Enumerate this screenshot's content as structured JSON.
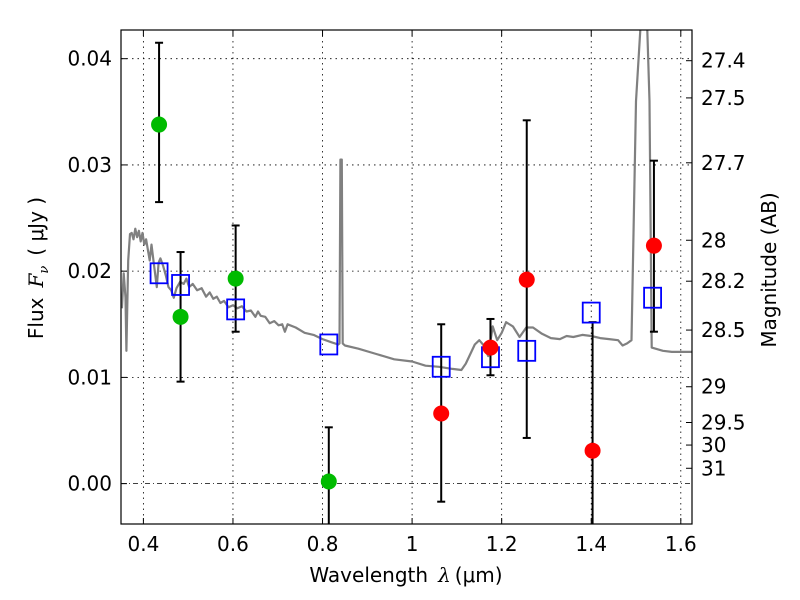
{
  "chart_data": {
    "type": "scatter",
    "title": "",
    "xlabel": "Wavelength  λ (μm)",
    "xlabel_parts": {
      "text": "Wavelength",
      "symbol": "λ",
      "unit": "(μm)"
    },
    "ylabel": "Flux  Fν  ( μJy )",
    "ylabel_parts": {
      "text": "Flux",
      "symbol": "F",
      "subscript": "ν",
      "unit": "( μJy )"
    },
    "y2label": "Magnitude (AB)",
    "xlim": [
      0.35,
      1.625
    ],
    "ylim": [
      -0.0038,
      0.0427
    ],
    "grid": true,
    "legend": "none",
    "xticks": [
      {
        "value": 0.4,
        "label": "0.4"
      },
      {
        "value": 0.6,
        "label": "0.6"
      },
      {
        "value": 0.8,
        "label": "0.8"
      },
      {
        "value": 1.0,
        "label": "1"
      },
      {
        "value": 1.2,
        "label": "1.2"
      },
      {
        "value": 1.4,
        "label": "1.4"
      },
      {
        "value": 1.6,
        "label": "1.6"
      }
    ],
    "yticks": [
      {
        "value": 0.0,
        "label": "0.00"
      },
      {
        "value": 0.01,
        "label": "0.01"
      },
      {
        "value": 0.02,
        "label": "0.02"
      },
      {
        "value": 0.03,
        "label": "0.03"
      },
      {
        "value": 0.04,
        "label": "0.04"
      }
    ],
    "y2ticks": [
      {
        "value": 27.4,
        "label": "27.4"
      },
      {
        "value": 27.5,
        "label": "27.5"
      },
      {
        "value": 27.7,
        "label": "27.7"
      },
      {
        "value": 28.0,
        "label": "28"
      },
      {
        "value": 28.2,
        "label": "28.2"
      },
      {
        "value": 28.5,
        "label": "28.5"
      },
      {
        "value": 29.0,
        "label": "29"
      },
      {
        "value": 29.5,
        "label": "29.5"
      },
      {
        "value": 30.0,
        "label": "30"
      },
      {
        "value": 31.0,
        "label": "31"
      }
    ],
    "zero_line": {
      "y": 0.0,
      "style": "dash-dot"
    },
    "series": [
      {
        "name": "model-spectrum",
        "kind": "line",
        "color": "#808080",
        "points": [
          [
            0.352,
            0.0165
          ],
          [
            0.356,
            0.0198
          ],
          [
            0.36,
            0.0175
          ],
          [
            0.362,
            0.0125
          ],
          [
            0.366,
            0.021
          ],
          [
            0.37,
            0.0235
          ],
          [
            0.374,
            0.0236
          ],
          [
            0.378,
            0.023
          ],
          [
            0.382,
            0.024
          ],
          [
            0.386,
            0.0232
          ],
          [
            0.39,
            0.0238
          ],
          [
            0.394,
            0.0228
          ],
          [
            0.398,
            0.0236
          ],
          [
            0.402,
            0.0225
          ],
          [
            0.406,
            0.023
          ],
          [
            0.41,
            0.022
          ],
          [
            0.414,
            0.021
          ],
          [
            0.418,
            0.0225
          ],
          [
            0.424,
            0.0205
          ],
          [
            0.43,
            0.0185
          ],
          [
            0.434,
            0.0208
          ],
          [
            0.438,
            0.0212
          ],
          [
            0.444,
            0.0205
          ],
          [
            0.45,
            0.0196
          ],
          [
            0.456,
            0.0185
          ],
          [
            0.462,
            0.0182
          ],
          [
            0.468,
            0.0175
          ],
          [
            0.474,
            0.0184
          ],
          [
            0.482,
            0.019
          ],
          [
            0.49,
            0.0188
          ],
          [
            0.496,
            0.0193
          ],
          [
            0.502,
            0.0185
          ],
          [
            0.51,
            0.0188
          ],
          [
            0.52,
            0.0182
          ],
          [
            0.53,
            0.0184
          ],
          [
            0.54,
            0.0176
          ],
          [
            0.548,
            0.018
          ],
          [
            0.556,
            0.0174
          ],
          [
            0.564,
            0.0176
          ],
          [
            0.572,
            0.017
          ],
          [
            0.58,
            0.0172
          ],
          [
            0.59,
            0.0166
          ],
          [
            0.6,
            0.0168
          ],
          [
            0.61,
            0.0165
          ],
          [
            0.62,
            0.0167
          ],
          [
            0.63,
            0.0162
          ],
          [
            0.64,
            0.0163
          ],
          [
            0.65,
            0.0157
          ],
          [
            0.656,
            0.0162
          ],
          [
            0.662,
            0.0158
          ],
          [
            0.672,
            0.0157
          ],
          [
            0.682,
            0.0151
          ],
          [
            0.692,
            0.0153
          ],
          [
            0.702,
            0.0149
          ],
          [
            0.71,
            0.015
          ],
          [
            0.716,
            0.0143
          ],
          [
            0.722,
            0.015
          ],
          [
            0.74,
            0.0147
          ],
          [
            0.76,
            0.0142
          ],
          [
            0.78,
            0.014
          ],
          [
            0.8,
            0.0136
          ],
          [
            0.82,
            0.0133
          ],
          [
            0.835,
            0.0131
          ],
          [
            0.838,
            0.0132
          ],
          [
            0.84,
            0.0305
          ],
          [
            0.843,
            0.0305
          ],
          [
            0.845,
            0.0132
          ],
          [
            0.85,
            0.013
          ],
          [
            0.88,
            0.0127
          ],
          [
            0.92,
            0.0122
          ],
          [
            0.96,
            0.0117
          ],
          [
            1.0,
            0.0115
          ],
          [
            1.03,
            0.0111
          ],
          [
            1.06,
            0.011
          ],
          [
            1.09,
            0.0108
          ],
          [
            1.11,
            0.0107
          ],
          [
            1.12,
            0.0113
          ],
          [
            1.14,
            0.0131
          ],
          [
            1.15,
            0.0135
          ],
          [
            1.16,
            0.013
          ],
          [
            1.17,
            0.012
          ],
          [
            1.18,
            0.0148
          ],
          [
            1.19,
            0.0135
          ],
          [
            1.2,
            0.0142
          ],
          [
            1.21,
            0.0152
          ],
          [
            1.225,
            0.0148
          ],
          [
            1.24,
            0.0138
          ],
          [
            1.255,
            0.0147
          ],
          [
            1.27,
            0.0147
          ],
          [
            1.29,
            0.0141
          ],
          [
            1.31,
            0.0137
          ],
          [
            1.33,
            0.0136
          ],
          [
            1.345,
            0.0139
          ],
          [
            1.36,
            0.0138
          ],
          [
            1.38,
            0.014
          ],
          [
            1.4,
            0.0139
          ],
          [
            1.42,
            0.0137
          ],
          [
            1.44,
            0.0136
          ],
          [
            1.46,
            0.0135
          ],
          [
            1.47,
            0.013
          ],
          [
            1.48,
            0.0132
          ],
          [
            1.49,
            0.0135
          ],
          [
            1.5,
            0.036
          ],
          [
            1.51,
            0.043
          ],
          [
            1.525,
            0.043
          ],
          [
            1.53,
            0.036
          ],
          [
            1.535,
            0.0128
          ],
          [
            1.56,
            0.0125
          ],
          [
            1.58,
            0.0124
          ],
          [
            1.6,
            0.0124
          ],
          [
            1.625,
            0.0124
          ]
        ]
      },
      {
        "name": "model-photometry",
        "kind": "open-square",
        "color": "#0000ff",
        "points": [
          [
            0.435,
            0.0198
          ],
          [
            0.483,
            0.0187
          ],
          [
            0.606,
            0.0164
          ],
          [
            0.814,
            0.0131
          ],
          [
            1.065,
            0.011
          ],
          [
            1.175,
            0.0119
          ],
          [
            1.256,
            0.0125
          ],
          [
            1.4,
            0.0161
          ],
          [
            1.537,
            0.0175
          ]
        ]
      },
      {
        "name": "observed-optical",
        "kind": "filled-circle",
        "color": "#00bb00",
        "points": [
          {
            "x": 0.435,
            "y": 0.0338,
            "ylo": 0.0265,
            "yhi": 0.0415
          },
          {
            "x": 0.483,
            "y": 0.0157,
            "ylo": 0.0096,
            "yhi": 0.0218
          },
          {
            "x": 0.606,
            "y": 0.0193,
            "ylo": 0.0143,
            "yhi": 0.0243
          },
          {
            "x": 0.814,
            "y": 0.0002,
            "ylo": -0.0045,
            "yhi": 0.0053
          }
        ]
      },
      {
        "name": "observed-infrared",
        "kind": "filled-circle",
        "color": "#ff0000",
        "points": [
          {
            "x": 1.065,
            "y": 0.0066,
            "ylo": -0.0017,
            "yhi": 0.015
          },
          {
            "x": 1.175,
            "y": 0.0128,
            "ylo": 0.0102,
            "yhi": 0.0155
          },
          {
            "x": 1.256,
            "y": 0.0192,
            "ylo": 0.0043,
            "yhi": 0.0342
          },
          {
            "x": 1.403,
            "y": 0.0031,
            "ylo": -0.006,
            "yhi": 0.0152
          },
          {
            "x": 1.54,
            "y": 0.0224,
            "ylo": 0.0143,
            "yhi": 0.0304
          }
        ]
      }
    ]
  }
}
